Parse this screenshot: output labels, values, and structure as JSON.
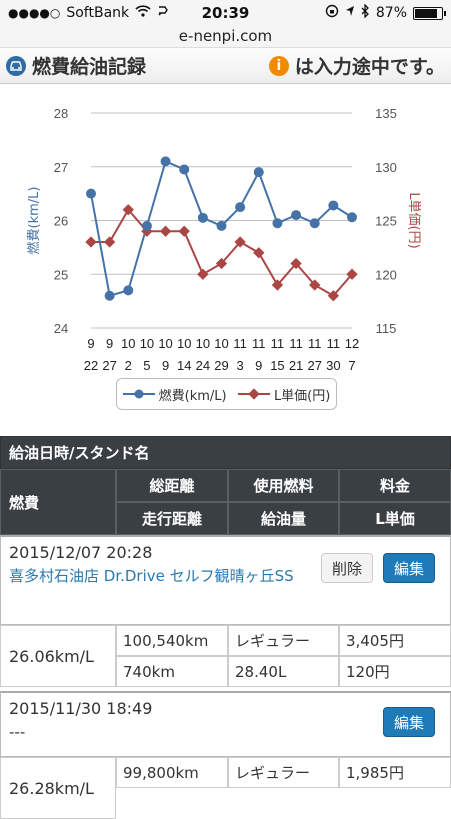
{
  "status": {
    "carrier": "SoftBank",
    "time": "20:39",
    "battery": "87%",
    "battery_level": 0.87
  },
  "url": "e-nenpi.com",
  "header": {
    "title": "燃費給油記録",
    "notice": "は入力途中です。"
  },
  "chart_data": {
    "type": "line",
    "categories": [
      [
        "9",
        "22"
      ],
      [
        "9",
        "27"
      ],
      [
        "10",
        "2"
      ],
      [
        "10",
        "5"
      ],
      [
        "10",
        "9"
      ],
      [
        "10",
        "14"
      ],
      [
        "10",
        "24"
      ],
      [
        "10",
        "29"
      ],
      [
        "11",
        "3"
      ],
      [
        "11",
        "9"
      ],
      [
        "11",
        "15"
      ],
      [
        "11",
        "21"
      ],
      [
        "11",
        "27"
      ],
      [
        "11",
        "30"
      ],
      [
        "12",
        "7"
      ]
    ],
    "y_left": {
      "label": "燃費(km/L)",
      "range": [
        24,
        28
      ],
      "ticks": [
        "24",
        "25",
        "26",
        "27",
        "28"
      ]
    },
    "y_right": {
      "label": "L単価(円)",
      "range": [
        115,
        135
      ],
      "ticks": [
        "115",
        "120",
        "125",
        "130",
        "135"
      ]
    },
    "grid": true,
    "legend_position": "bottom",
    "series": [
      {
        "name": "燃費(km/L)",
        "axis": "left",
        "color": "#4572a7",
        "values": [
          26.5,
          24.6,
          24.7,
          25.9,
          27.1,
          26.95,
          26.05,
          25.9,
          26.25,
          26.9,
          25.95,
          26.1,
          25.95,
          26.28,
          26.06
        ]
      },
      {
        "name": "L単価(円)",
        "axis": "right",
        "color": "#aa4643",
        "values": [
          123,
          123,
          126,
          124,
          124,
          124,
          120,
          121,
          123,
          122,
          119,
          121,
          119,
          118,
          120
        ]
      }
    ]
  },
  "table": {
    "header_title": "給油日時/スタンド名",
    "col_fuel": "燃費",
    "col_total_distance": "総距離",
    "col_fuel_type": "使用燃料",
    "col_price": "料金",
    "col_trip_distance": "走行距離",
    "col_amount": "給油量",
    "col_unit_price": "L単価",
    "delete_label": "削除",
    "edit_label": "編集",
    "entries": [
      {
        "date": "2015/12/07 20:28",
        "station": "喜多村石油店 Dr.Drive セルフ観晴ヶ丘SS",
        "fuel": "26.06km/L",
        "total": "100,540km",
        "type": "レギュラー",
        "price": "3,405円",
        "trip": "740km",
        "amount": "28.40L",
        "unit": "120円"
      },
      {
        "date": "2015/11/30 18:49",
        "station": "---",
        "fuel": "26.28km/L",
        "total": "99,800km",
        "type": "レギュラー",
        "price": "1,985円"
      }
    ]
  }
}
